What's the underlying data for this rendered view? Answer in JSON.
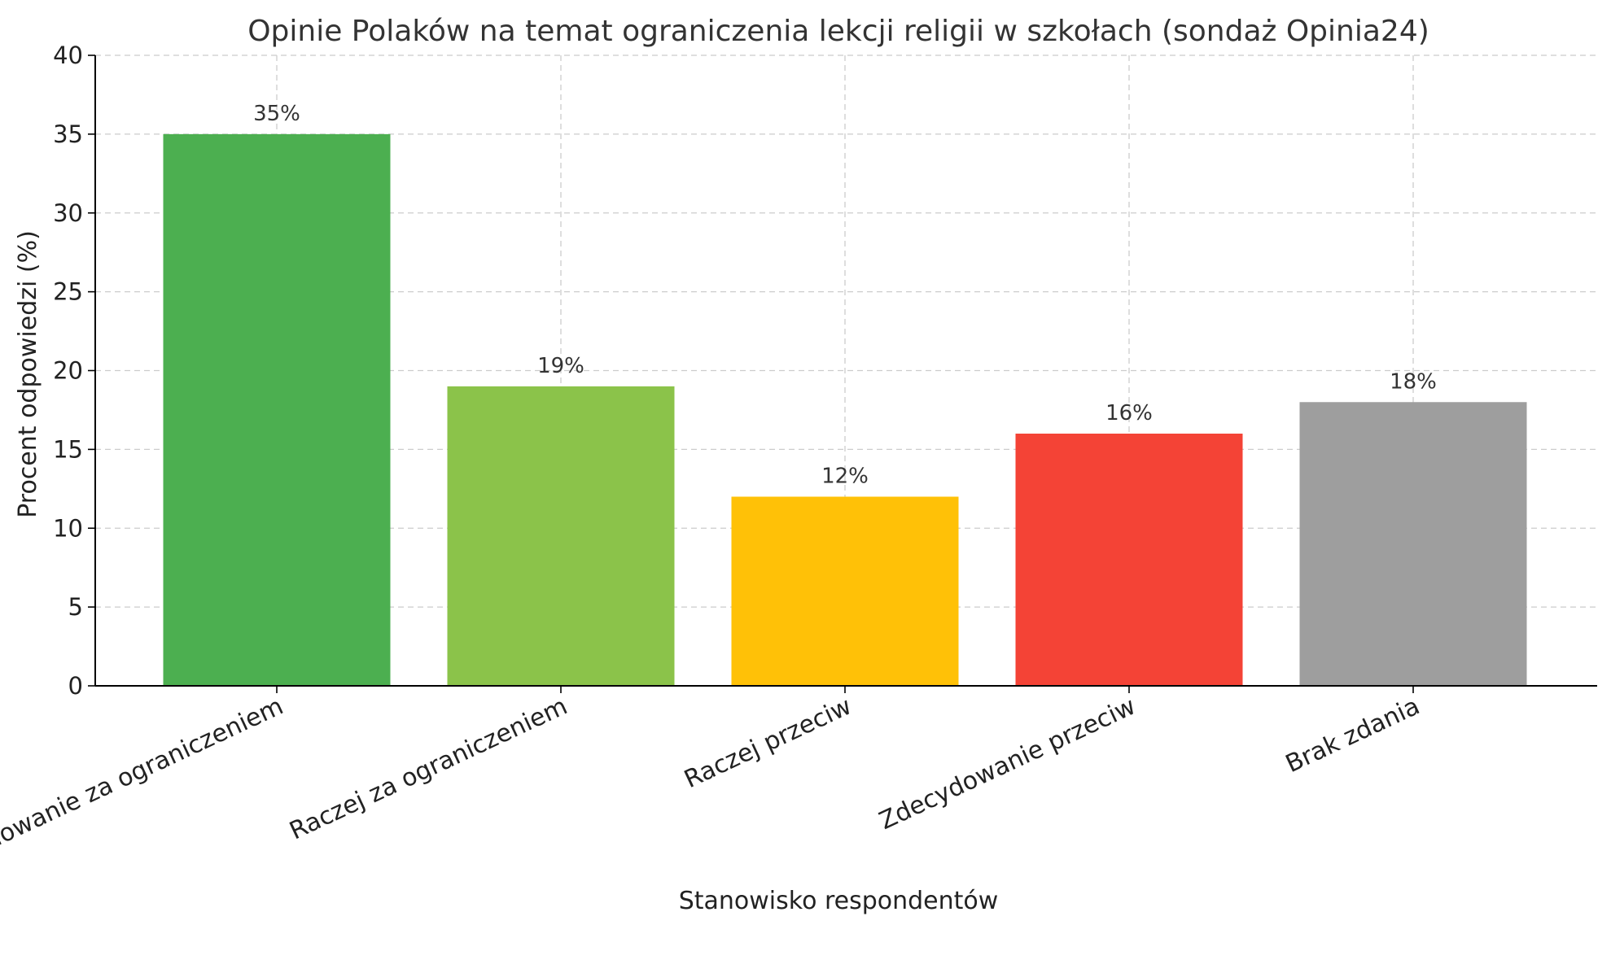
{
  "chart_data": {
    "type": "bar",
    "title": "Opinie Polaków na temat ograniczenia lekcji religii w szkołach (sondaż Opinia24)",
    "xlabel": "Stanowisko respondentów",
    "ylabel": "Procent odpowiedzi (%)",
    "categories": [
      "Zdecydowanie za ograniczeniem",
      "Raczej za ograniczeniem",
      "Raczej przeciw",
      "Zdecydowanie przeciw",
      "Brak zdania"
    ],
    "values": [
      35,
      19,
      12,
      16,
      18
    ],
    "data_labels": [
      "35%",
      "19%",
      "12%",
      "16%",
      "18%"
    ],
    "colors": [
      "#4caf50",
      "#8bc34a",
      "#ffc107",
      "#f44336",
      "#9e9e9e"
    ],
    "ylim": [
      0,
      40
    ],
    "yticks": [
      0,
      5,
      10,
      15,
      20,
      25,
      30,
      35,
      40
    ],
    "grid": true,
    "legend": "none"
  }
}
